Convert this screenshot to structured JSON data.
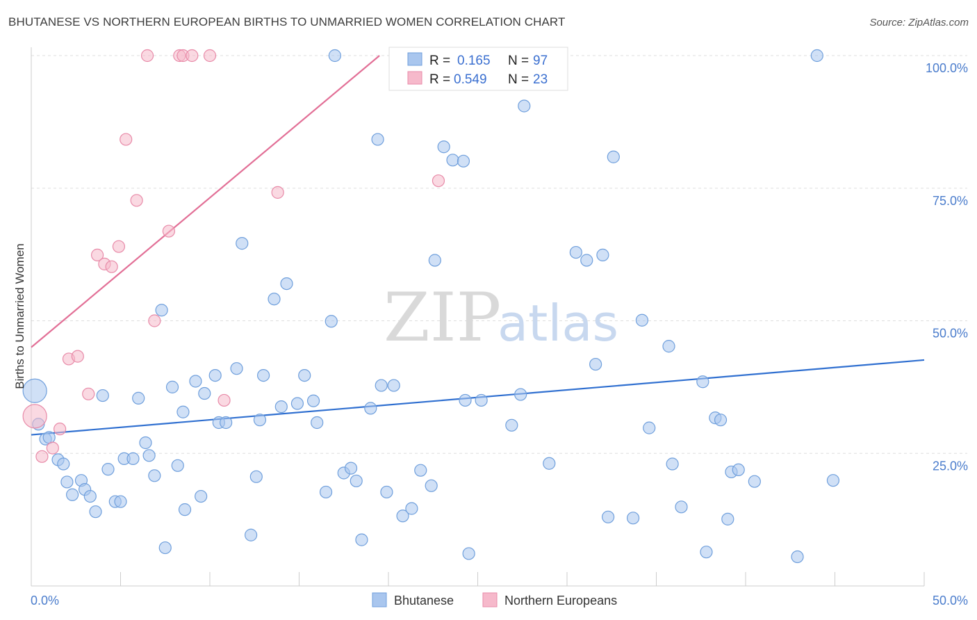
{
  "header": {
    "title": "BHUTANESE VS NORTHERN EUROPEAN BIRTHS TO UNMARRIED WOMEN CORRELATION CHART",
    "source": "Source: ZipAtlas.com"
  },
  "watermark": {
    "zip": "ZIP",
    "atlas": "atlas"
  },
  "legend": {
    "rows": [
      {
        "r_label": "R =",
        "r_value": "0.165",
        "n_label": "N =",
        "n_value": "97"
      },
      {
        "r_label": "R =",
        "r_value": "0.549",
        "n_label": "N =",
        "n_value": "23"
      }
    ]
  },
  "bottom_legend": [
    "Bhutanese",
    "Northern Europeans"
  ],
  "colors": {
    "blue_fill": "#a9c6ee",
    "blue_stroke": "#6f9fdc",
    "blue_line": "#2f6fd0",
    "pink_fill": "#f6b9cb",
    "pink_stroke": "#e88aa8",
    "pink_line": "#e26f96",
    "tick_text": "#4a7ccc",
    "grid": "#dddddd"
  },
  "chart_data": {
    "type": "scatter",
    "xlabel": "",
    "ylabel": "Births to Unmarried Women",
    "xlim": [
      0,
      50
    ],
    "ylim": [
      0,
      100
    ],
    "x_tick_labels": [
      "0.0%",
      "50.0%"
    ],
    "y_ticks": [
      25,
      50,
      75,
      100
    ],
    "y_tick_labels": [
      "25.0%",
      "50.0%",
      "75.0%",
      "100.0%"
    ],
    "grid": true,
    "legend_position": "top-center",
    "series": [
      {
        "name": "Bhutanese",
        "color": "#a9c6ee",
        "trend": {
          "x": [
            0,
            50
          ],
          "y": [
            28.5,
            42.6
          ]
        },
        "points": [
          [
            0.2,
            36.8
          ],
          [
            0.4,
            30.5
          ],
          [
            0.8,
            27.7
          ],
          [
            1.0,
            28.0
          ],
          [
            1.5,
            23.8
          ],
          [
            1.8,
            23.0
          ],
          [
            2.0,
            19.6
          ],
          [
            2.3,
            17.2
          ],
          [
            2.8,
            19.9
          ],
          [
            3.0,
            18.2
          ],
          [
            3.3,
            16.9
          ],
          [
            3.6,
            14.0
          ],
          [
            4.0,
            35.9
          ],
          [
            4.3,
            22.0
          ],
          [
            4.7,
            15.9
          ],
          [
            5.0,
            15.9
          ],
          [
            5.2,
            24.0
          ],
          [
            5.7,
            24.0
          ],
          [
            6.0,
            35.4
          ],
          [
            6.4,
            27.0
          ],
          [
            6.6,
            24.6
          ],
          [
            6.9,
            20.8
          ],
          [
            7.3,
            52.0
          ],
          [
            7.5,
            7.2
          ],
          [
            7.9,
            37.5
          ],
          [
            8.2,
            22.7
          ],
          [
            8.5,
            32.8
          ],
          [
            8.6,
            14.4
          ],
          [
            9.2,
            38.6
          ],
          [
            9.5,
            16.9
          ],
          [
            9.7,
            36.3
          ],
          [
            10.3,
            39.7
          ],
          [
            10.5,
            30.8
          ],
          [
            10.9,
            30.8
          ],
          [
            11.5,
            41.0
          ],
          [
            11.8,
            64.6
          ],
          [
            12.3,
            9.6
          ],
          [
            12.6,
            20.6
          ],
          [
            12.8,
            31.3
          ],
          [
            13.0,
            39.7
          ],
          [
            13.6,
            54.1
          ],
          [
            14.0,
            33.8
          ],
          [
            14.3,
            57.0
          ],
          [
            14.9,
            34.4
          ],
          [
            15.3,
            39.7
          ],
          [
            15.8,
            34.9
          ],
          [
            16.0,
            30.8
          ],
          [
            16.5,
            17.7
          ],
          [
            16.8,
            49.9
          ],
          [
            17.0,
            100.0
          ],
          [
            17.5,
            21.3
          ],
          [
            17.9,
            22.2
          ],
          [
            18.2,
            19.8
          ],
          [
            18.5,
            8.7
          ],
          [
            19.0,
            33.5
          ],
          [
            19.4,
            84.2
          ],
          [
            19.6,
            37.8
          ],
          [
            19.9,
            17.7
          ],
          [
            20.3,
            37.8
          ],
          [
            20.8,
            13.2
          ],
          [
            21.3,
            14.6
          ],
          [
            21.8,
            21.8
          ],
          [
            22.4,
            18.9
          ],
          [
            22.6,
            61.4
          ],
          [
            23.1,
            82.8
          ],
          [
            23.6,
            80.3
          ],
          [
            24.2,
            80.1
          ],
          [
            24.3,
            35.0
          ],
          [
            24.5,
            6.1
          ],
          [
            25.2,
            35.0
          ],
          [
            26.9,
            30.3
          ],
          [
            27.4,
            36.1
          ],
          [
            27.6,
            90.5
          ],
          [
            29.0,
            23.1
          ],
          [
            30.5,
            62.9
          ],
          [
            31.1,
            61.4
          ],
          [
            31.6,
            41.8
          ],
          [
            32.0,
            62.4
          ],
          [
            32.3,
            13.0
          ],
          [
            32.6,
            80.9
          ],
          [
            33.7,
            12.8
          ],
          [
            34.2,
            50.1
          ],
          [
            34.6,
            29.8
          ],
          [
            35.7,
            45.2
          ],
          [
            35.9,
            23.0
          ],
          [
            36.4,
            14.9
          ],
          [
            37.6,
            38.5
          ],
          [
            37.8,
            6.4
          ],
          [
            38.3,
            31.7
          ],
          [
            38.6,
            31.3
          ],
          [
            39.0,
            12.6
          ],
          [
            39.2,
            21.5
          ],
          [
            39.6,
            21.9
          ],
          [
            40.5,
            19.7
          ],
          [
            42.9,
            5.5
          ],
          [
            44.0,
            100.0
          ],
          [
            44.9,
            19.9
          ]
        ]
      },
      {
        "name": "Northern Europeans",
        "color": "#f6b9cb",
        "trend": {
          "x": [
            0,
            19.5
          ],
          "y": [
            45.0,
            100.0
          ]
        },
        "points": [
          [
            0.2,
            32.0
          ],
          [
            0.6,
            24.4
          ],
          [
            1.2,
            26.0
          ],
          [
            1.6,
            29.6
          ],
          [
            2.1,
            42.8
          ],
          [
            2.6,
            43.3
          ],
          [
            3.2,
            36.2
          ],
          [
            3.7,
            62.4
          ],
          [
            4.1,
            60.7
          ],
          [
            4.5,
            60.2
          ],
          [
            4.9,
            64.0
          ],
          [
            5.3,
            84.2
          ],
          [
            5.9,
            72.7
          ],
          [
            6.5,
            100.0
          ],
          [
            6.9,
            50.0
          ],
          [
            7.7,
            66.9
          ],
          [
            8.3,
            100.0
          ],
          [
            8.5,
            100.0
          ],
          [
            9.0,
            100.0
          ],
          [
            10.0,
            100.0
          ],
          [
            10.8,
            35.0
          ],
          [
            13.8,
            74.2
          ],
          [
            22.8,
            76.4
          ]
        ]
      }
    ]
  }
}
